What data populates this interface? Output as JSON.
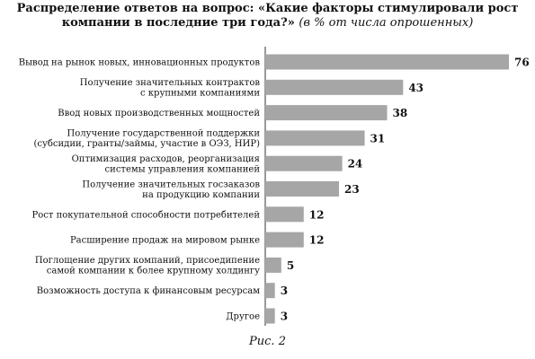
{
  "chart_data": {
    "type": "bar",
    "orientation": "horizontal",
    "title": "Распределение ответов на вопрос: «Какие факторы стимулировали рост компании в последние три года?»",
    "title_line1": "Распределение ответов на вопрос: «Какие факторы стимулировали рост",
    "title_line2": "компании в последние три года?»",
    "subtitle": "(в % от числа опрошенных)",
    "xlabel": "",
    "ylabel": "",
    "xlim": [
      0,
      76
    ],
    "grid": false,
    "legend": "none",
    "bar_color": "#a6a6a6",
    "categories": [
      [
        "Вывод на рынок новых, инновационных продуктов"
      ],
      [
        "Получение значительных контрактов",
        "с крупными компаниями"
      ],
      [
        "Ввод новых производственных мощностей"
      ],
      [
        "Получение государственной поддержки",
        "(субсидии, гранты/займы, участие в ОЭЗ, НИР)"
      ],
      [
        "Оптимизация расходов, реорганизация",
        "системы управления компанией"
      ],
      [
        "Получение значительных госзаказов",
        "на продукцию компании"
      ],
      [
        "Рост покупательной способности потребителей"
      ],
      [
        "Расширение продаж на мировом рынке"
      ],
      [
        "Поглощение других компаний, присоедипение",
        "самой компании к более крупному холдингу"
      ],
      [
        "Возможность доступа к финансовым ресурсам"
      ],
      [
        "Другое"
      ]
    ],
    "values": [
      76,
      43,
      38,
      31,
      24,
      23,
      12,
      12,
      5,
      3,
      3
    ]
  },
  "caption": "Рис. 2"
}
